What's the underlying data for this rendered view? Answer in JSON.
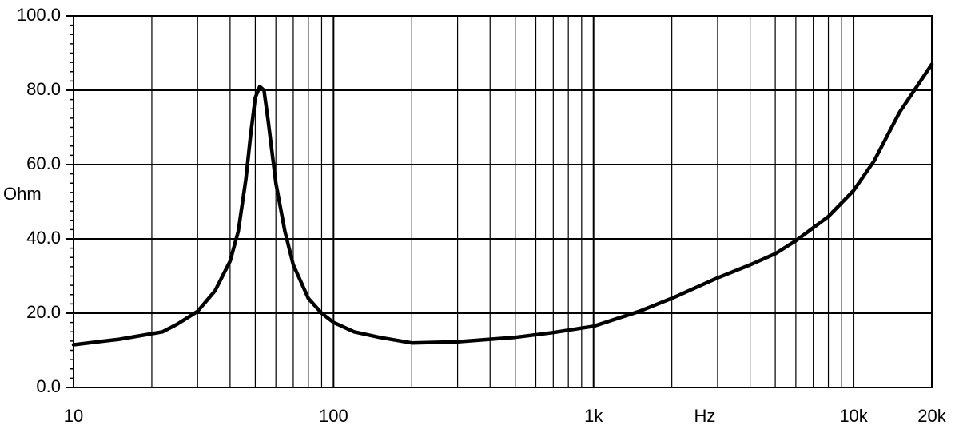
{
  "chart_data": {
    "type": "line",
    "x_label": "Hz",
    "y_label": "Ohm",
    "log_x": true,
    "grid": true,
    "minor_grid": true,
    "color": "#000000",
    "x": [
      10,
      15,
      20,
      22,
      25,
      30,
      35,
      40,
      43,
      46,
      48,
      50,
      52,
      54,
      56,
      60,
      65,
      70,
      80,
      90,
      100,
      120,
      150,
      200,
      300,
      500,
      700,
      1000,
      1500,
      2000,
      3000,
      4000,
      5000,
      6000,
      7000,
      8000,
      10000,
      12000,
      15000,
      20000
    ],
    "values": [
      11.5,
      13,
      14.5,
      15,
      17,
      20.5,
      26,
      34,
      42,
      56,
      68,
      78,
      81,
      80,
      72,
      55,
      42,
      33,
      24,
      20,
      17.5,
      15,
      13.5,
      12,
      12.3,
      13.5,
      14.8,
      16.5,
      20.5,
      24,
      29.5,
      33,
      36,
      39.5,
      43,
      46,
      53,
      61,
      74,
      87
    ],
    "xlim": [
      10,
      20000
    ],
    "ylim": [
      0,
      100
    ],
    "xticks": [
      10,
      100,
      {
        "value": 1000,
        "label": "1k"
      },
      {
        "value": 10000,
        "label": "10k"
      },
      {
        "value": 20000,
        "label": "20k"
      }
    ],
    "yticks": [
      {
        "value": 0,
        "label": "0.0"
      },
      {
        "value": 20,
        "label": "20.0"
      },
      {
        "value": 40,
        "label": "40.0"
      },
      {
        "value": 60,
        "label": "60.0"
      },
      {
        "value": 80,
        "label": "80.0"
      },
      {
        "value": 100,
        "label": "100.0"
      }
    ]
  }
}
